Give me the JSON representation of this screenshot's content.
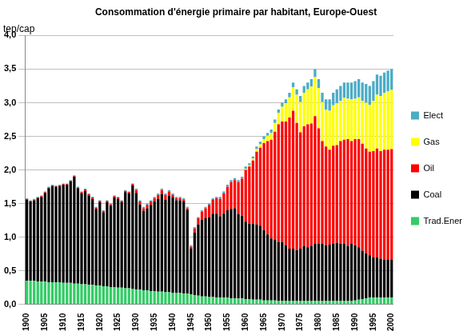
{
  "chart_data": {
    "type": "bar",
    "title": "Consommation d'énergie primaire par habitant, Europe-Ouest",
    "y_label": "tep/cap",
    "stacked": true,
    "grid": true,
    "legend": "right",
    "categories": [
      "1900",
      null,
      null,
      null,
      null,
      "1905",
      null,
      null,
      null,
      null,
      "1910",
      null,
      null,
      null,
      null,
      "1915",
      null,
      null,
      null,
      null,
      "1920",
      null,
      null,
      null,
      null,
      "1925",
      null,
      null,
      null,
      null,
      "1930",
      null,
      null,
      null,
      null,
      "1935",
      null,
      null,
      null,
      null,
      "1940",
      null,
      null,
      null,
      null,
      "1945",
      null,
      null,
      null,
      null,
      "1950",
      null,
      null,
      null,
      null,
      "1955",
      null,
      null,
      null,
      null,
      "1960",
      null,
      null,
      null,
      null,
      "1965",
      null,
      null,
      null,
      null,
      "1970",
      null,
      null,
      null,
      null,
      "1975",
      null,
      null,
      null,
      null,
      "1980",
      null,
      null,
      null,
      null,
      "1985",
      null,
      null,
      null,
      null,
      "1990",
      null,
      null,
      null,
      null,
      "1995",
      null,
      null,
      null,
      null,
      "2000"
    ],
    "ylim": [
      0,
      4
    ],
    "yticks": [
      {
        "value": 0,
        "label": "0,0"
      },
      {
        "value": 0.5,
        "label": "0,5"
      },
      {
        "value": 1,
        "label": "1,0"
      },
      {
        "value": 1.5,
        "label": "1,5"
      },
      {
        "value": 2,
        "label": "2,0"
      },
      {
        "value": 2.5,
        "label": "2,5"
      },
      {
        "value": 3,
        "label": "3,0"
      },
      {
        "value": 3.5,
        "label": "3,5"
      },
      {
        "value": 4,
        "label": "4,0"
      }
    ],
    "series": [
      {
        "name": "Trad.Ener",
        "color": "#33cc66",
        "values": [
          0.35,
          0.35,
          0.35,
          0.34,
          0.34,
          0.34,
          0.33,
          0.33,
          0.33,
          0.33,
          0.32,
          0.32,
          0.32,
          0.31,
          0.31,
          0.3,
          0.3,
          0.29,
          0.29,
          0.28,
          0.28,
          0.27,
          0.27,
          0.26,
          0.26,
          0.25,
          0.25,
          0.24,
          0.24,
          0.23,
          0.22,
          0.22,
          0.21,
          0.21,
          0.2,
          0.2,
          0.19,
          0.19,
          0.18,
          0.18,
          0.17,
          0.17,
          0.17,
          0.16,
          0.16,
          0.15,
          0.14,
          0.13,
          0.12,
          0.12,
          0.11,
          0.11,
          0.1,
          0.1,
          0.1,
          0.1,
          0.09,
          0.09,
          0.09,
          0.09,
          0.08,
          0.08,
          0.07,
          0.07,
          0.07,
          0.06,
          0.06,
          0.06,
          0.06,
          0.05,
          0.05,
          0.05,
          0.05,
          0.05,
          0.05,
          0.05,
          0.05,
          0.05,
          0.05,
          0.05,
          0.05,
          0.05,
          0.05,
          0.05,
          0.05,
          0.05,
          0.05,
          0.05,
          0.05,
          0.05,
          0.06,
          0.07,
          0.08,
          0.09,
          0.1,
          0.1,
          0.1,
          0.1,
          0.1,
          0.1,
          0.1
        ]
      },
      {
        "name": "Coal",
        "color": "#000000",
        "values": [
          1.21,
          1.18,
          1.2,
          1.24,
          1.26,
          1.32,
          1.4,
          1.43,
          1.42,
          1.43,
          1.46,
          1.46,
          1.51,
          1.59,
          1.42,
          1.35,
          1.39,
          1.33,
          1.28,
          1.14,
          1.24,
          1.1,
          1.25,
          1.21,
          1.33,
          1.32,
          1.27,
          1.43,
          1.41,
          1.54,
          1.44,
          1.27,
          1.18,
          1.22,
          1.28,
          1.33,
          1.38,
          1.45,
          1.38,
          1.44,
          1.42,
          1.38,
          1.38,
          1.37,
          1.25,
          0.68,
          0.93,
          1.06,
          1.14,
          1.16,
          1.19,
          1.24,
          1.25,
          1.21,
          1.25,
          1.3,
          1.33,
          1.34,
          1.25,
          1.23,
          1.15,
          1.12,
          1.13,
          1.12,
          1.1,
          1.05,
          0.98,
          0.92,
          0.9,
          0.88,
          0.88,
          0.83,
          0.78,
          0.78,
          0.76,
          0.78,
          0.82,
          0.8,
          0.82,
          0.85,
          0.85,
          0.85,
          0.83,
          0.84,
          0.85,
          0.87,
          0.85,
          0.85,
          0.82,
          0.85,
          0.82,
          0.78,
          0.72,
          0.67,
          0.63,
          0.6,
          0.6,
          0.58,
          0.57,
          0.57,
          0.57
        ]
      },
      {
        "name": "Oil",
        "color": "#ff0000",
        "values": [
          0.01,
          0.01,
          0.01,
          0.01,
          0.01,
          0.01,
          0.01,
          0.01,
          0.01,
          0.01,
          0.01,
          0.01,
          0.01,
          0.01,
          0.01,
          0.02,
          0.02,
          0.02,
          0.02,
          0.02,
          0.02,
          0.02,
          0.02,
          0.02,
          0.02,
          0.02,
          0.02,
          0.02,
          0.02,
          0.02,
          0.04,
          0.04,
          0.04,
          0.05,
          0.05,
          0.05,
          0.06,
          0.06,
          0.07,
          0.06,
          0.04,
          0.03,
          0.03,
          0.03,
          0.02,
          0.03,
          0.06,
          0.09,
          0.12,
          0.15,
          0.18,
          0.21,
          0.23,
          0.26,
          0.3,
          0.35,
          0.4,
          0.42,
          0.48,
          0.55,
          0.77,
          0.85,
          0.94,
          1.08,
          1.16,
          1.29,
          1.39,
          1.47,
          1.61,
          1.75,
          1.79,
          1.84,
          1.95,
          2.05,
          1.89,
          1.73,
          1.78,
          1.83,
          1.82,
          1.9,
          1.72,
          1.53,
          1.47,
          1.41,
          1.46,
          1.45,
          1.53,
          1.55,
          1.59,
          1.53,
          1.58,
          1.61,
          1.59,
          1.56,
          1.54,
          1.58,
          1.62,
          1.6,
          1.63,
          1.63,
          1.64
        ]
      },
      {
        "name": "Gas",
        "color": "#ffff00",
        "values": [
          0,
          0,
          0,
          0,
          0,
          0,
          0,
          0,
          0,
          0,
          0,
          0,
          0,
          0,
          0,
          0,
          0,
          0,
          0,
          0,
          0,
          0,
          0,
          0,
          0,
          0,
          0,
          0,
          0,
          0,
          0,
          0,
          0,
          0,
          0,
          0,
          0,
          0,
          0,
          0,
          0,
          0,
          0,
          0,
          0,
          0,
          0,
          0,
          0,
          0,
          0,
          0,
          0,
          0,
          0,
          0,
          0,
          0,
          0,
          0,
          0.02,
          0.02,
          0.03,
          0.04,
          0.05,
          0.06,
          0.08,
          0.1,
          0.13,
          0.17,
          0.22,
          0.27,
          0.3,
          0.35,
          0.42,
          0.45,
          0.5,
          0.52,
          0.55,
          0.58,
          0.6,
          0.58,
          0.55,
          0.58,
          0.6,
          0.62,
          0.6,
          0.62,
          0.6,
          0.62,
          0.6,
          0.62,
          0.64,
          0.68,
          0.7,
          0.75,
          0.8,
          0.82,
          0.85,
          0.87,
          0.88
        ]
      },
      {
        "name": "Elect",
        "color": "#4bacc6",
        "values": [
          0.01,
          0.01,
          0.01,
          0.01,
          0.01,
          0.01,
          0.01,
          0.01,
          0.01,
          0.01,
          0.01,
          0.01,
          0.01,
          0.01,
          0.01,
          0.01,
          0.01,
          0.01,
          0.01,
          0.01,
          0.01,
          0.01,
          0.01,
          0.01,
          0.01,
          0.01,
          0.01,
          0.01,
          0.01,
          0.01,
          0.02,
          0.02,
          0.02,
          0.02,
          0.02,
          0.02,
          0.02,
          0.02,
          0.02,
          0.02,
          0.02,
          0.02,
          0.02,
          0.02,
          0.02,
          0.02,
          0.02,
          0.02,
          0.02,
          0.02,
          0.02,
          0.02,
          0.02,
          0.03,
          0.03,
          0.03,
          0.03,
          0.03,
          0.03,
          0.03,
          0.03,
          0.03,
          0.03,
          0.04,
          0.04,
          0.04,
          0.04,
          0.05,
          0.05,
          0.05,
          0.06,
          0.06,
          0.07,
          0.07,
          0.08,
          0.09,
          0.1,
          0.1,
          0.11,
          0.12,
          0.13,
          0.14,
          0.15,
          0.17,
          0.19,
          0.21,
          0.22,
          0.23,
          0.24,
          0.25,
          0.26,
          0.27,
          0.27,
          0.28,
          0.28,
          0.29,
          0.3,
          0.3,
          0.3,
          0.31,
          0.31
        ]
      }
    ]
  }
}
